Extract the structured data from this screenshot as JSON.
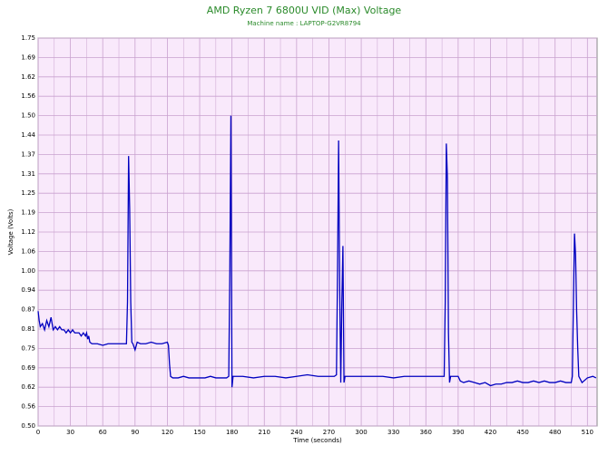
{
  "chart_data": {
    "type": "line",
    "title": "AMD Ryzen 7 6800U VID (Max) Voltage",
    "subtitle": "Machine name : LAPTOP-G2VR8794",
    "x_label": "Time (seconds)",
    "y_label": "Voltage (Volts)",
    "xlim": [
      0,
      519
    ],
    "ylim": [
      0.5,
      1.75
    ],
    "xticks": [
      0,
      30,
      60,
      90,
      120,
      150,
      180,
      210,
      240,
      270,
      300,
      330,
      360,
      390,
      420,
      450,
      480,
      510
    ],
    "yticks": [
      {
        "value": 0.5,
        "label": "0.50"
      },
      {
        "value": 0.5625,
        "label": "0.56"
      },
      {
        "value": 0.625,
        "label": "0.62"
      },
      {
        "value": 0.6875,
        "label": "0.69"
      },
      {
        "value": 0.75,
        "label": "0.75"
      },
      {
        "value": 0.8125,
        "label": "0.81"
      },
      {
        "value": 0.875,
        "label": "0.87"
      },
      {
        "value": 0.9375,
        "label": "0.94"
      },
      {
        "value": 1.0,
        "label": "1.00"
      },
      {
        "value": 1.0625,
        "label": "1.06"
      },
      {
        "value": 1.125,
        "label": "1.12"
      },
      {
        "value": 1.1875,
        "label": "1.19"
      },
      {
        "value": 1.25,
        "label": "1.25"
      },
      {
        "value": 1.3125,
        "label": "1.31"
      },
      {
        "value": 1.375,
        "label": "1.37"
      },
      {
        "value": 1.4375,
        "label": "1.44"
      },
      {
        "value": 1.5,
        "label": "1.50"
      },
      {
        "value": 1.5625,
        "label": "1.56"
      },
      {
        "value": 1.625,
        "label": "1.62"
      },
      {
        "value": 1.6875,
        "label": "1.69"
      },
      {
        "value": 1.75,
        "label": "1.75"
      }
    ],
    "grid": true,
    "series": [
      {
        "color": "#0000c0",
        "x": [
          0,
          1,
          2,
          4,
          6,
          8,
          10,
          12,
          14,
          16,
          18,
          20,
          22,
          24,
          26,
          28,
          30,
          32,
          34,
          36,
          38,
          40,
          42,
          44,
          45,
          46,
          47,
          48,
          50,
          55,
          60,
          65,
          70,
          75,
          80,
          82,
          83,
          84,
          85,
          86,
          87,
          88,
          90,
          92,
          95,
          100,
          105,
          110,
          115,
          120,
          121,
          122,
          123,
          125,
          130,
          135,
          140,
          145,
          150,
          155,
          160,
          165,
          170,
          175,
          177,
          178,
          179,
          180,
          181,
          182,
          185,
          190,
          200,
          210,
          220,
          230,
          240,
          250,
          260,
          270,
          275,
          277,
          278,
          279,
          280,
          281,
          282,
          283,
          284,
          285,
          290,
          300,
          310,
          320,
          330,
          340,
          350,
          360,
          370,
          375,
          377,
          378,
          379,
          380,
          381,
          382,
          383,
          385,
          390,
          392,
          395,
          400,
          405,
          410,
          415,
          420,
          425,
          430,
          435,
          440,
          445,
          450,
          455,
          460,
          465,
          470,
          475,
          480,
          485,
          490,
          495,
          496,
          497,
          498,
          499,
          500,
          501,
          502,
          505,
          510,
          515,
          518
        ],
        "values": [
          0.87,
          0.84,
          0.82,
          0.83,
          0.81,
          0.84,
          0.82,
          0.85,
          0.81,
          0.82,
          0.81,
          0.82,
          0.81,
          0.81,
          0.8,
          0.81,
          0.8,
          0.81,
          0.8,
          0.8,
          0.8,
          0.79,
          0.8,
          0.79,
          0.8,
          0.78,
          0.79,
          0.77,
          0.765,
          0.765,
          0.76,
          0.765,
          0.765,
          0.765,
          0.765,
          0.765,
          0.9,
          1.37,
          1.2,
          0.9,
          0.77,
          0.765,
          0.745,
          0.77,
          0.765,
          0.765,
          0.77,
          0.765,
          0.765,
          0.77,
          0.76,
          0.7,
          0.66,
          0.655,
          0.655,
          0.66,
          0.655,
          0.655,
          0.655,
          0.655,
          0.66,
          0.655,
          0.655,
          0.655,
          0.66,
          1.0,
          1.5,
          0.625,
          0.66,
          0.66,
          0.66,
          0.66,
          0.655,
          0.66,
          0.66,
          0.655,
          0.66,
          0.665,
          0.66,
          0.66,
          0.66,
          0.665,
          1.0,
          1.42,
          0.95,
          0.64,
          0.9,
          1.08,
          0.64,
          0.66,
          0.66,
          0.66,
          0.66,
          0.66,
          0.655,
          0.66,
          0.66,
          0.66,
          0.66,
          0.66,
          0.66,
          0.9,
          1.41,
          1.3,
          0.8,
          0.64,
          0.66,
          0.66,
          0.66,
          0.645,
          0.64,
          0.645,
          0.64,
          0.635,
          0.64,
          0.63,
          0.635,
          0.635,
          0.64,
          0.64,
          0.645,
          0.64,
          0.64,
          0.645,
          0.64,
          0.645,
          0.64,
          0.64,
          0.645,
          0.64,
          0.64,
          0.66,
          0.9,
          1.12,
          1.05,
          0.87,
          0.75,
          0.66,
          0.64,
          0.655,
          0.66,
          0.655
        ]
      }
    ]
  }
}
